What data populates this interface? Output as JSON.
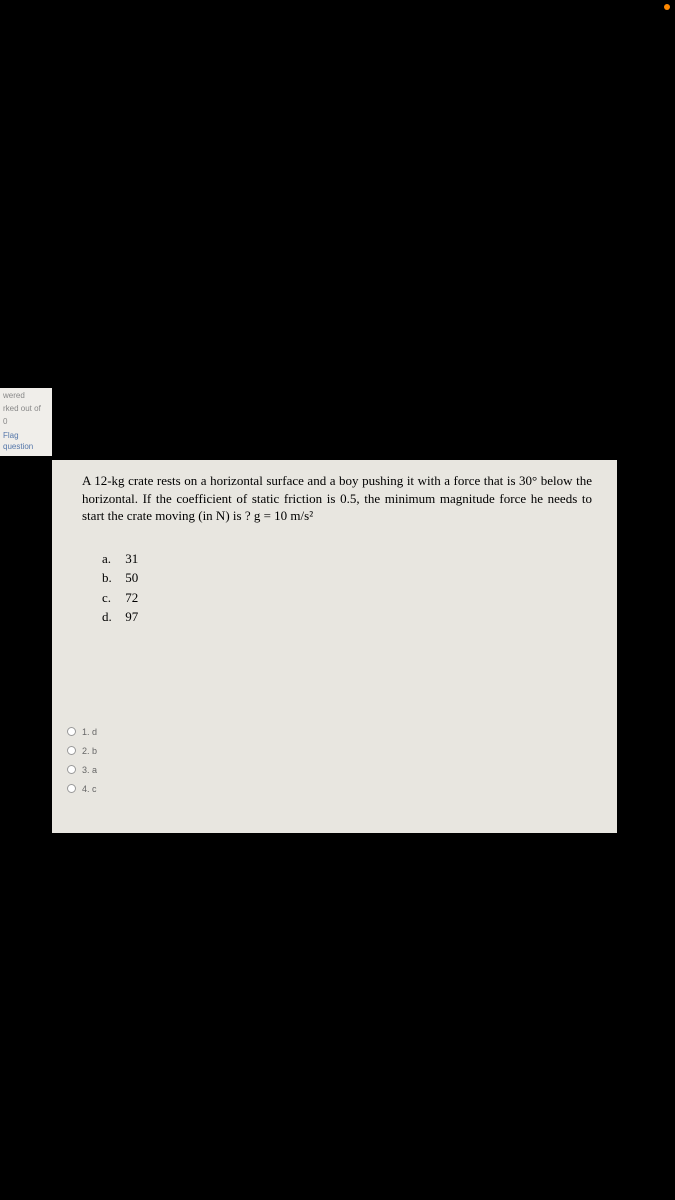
{
  "sidebar": {
    "status1": "wered",
    "status2": "rked out of",
    "status3": "0",
    "flag_label": "Flag question"
  },
  "question": {
    "text": "A 12-kg crate rests on a horizontal surface and a boy pushing it with a force that is 30° below the horizontal. If the coefficient of static friction is 0.5, the minimum magnitude force he needs to start the crate moving (in N) is ? g = 10 m/s²",
    "options": [
      {
        "letter": "a.",
        "value": "31"
      },
      {
        "letter": "b.",
        "value": "50"
      },
      {
        "letter": "c.",
        "value": "72"
      },
      {
        "letter": "d.",
        "value": "97"
      }
    ]
  },
  "answers": [
    {
      "label": "1. d"
    },
    {
      "label": "2. b"
    },
    {
      "label": "3. a"
    },
    {
      "label": "4. c"
    }
  ]
}
